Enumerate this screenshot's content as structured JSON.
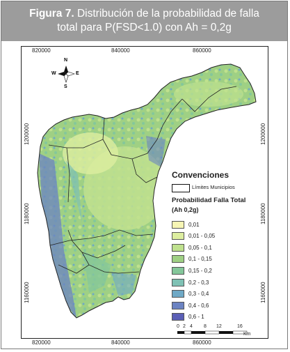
{
  "caption": {
    "bold_label": "Figura 7.",
    "line1_text": " Distribución de la probabilidad de falla",
    "line2": "total para P(FSD<1.0) con Ah = 0,2g"
  },
  "map": {
    "x_ticks": [
      "820000",
      "840000",
      "860000"
    ],
    "y_ticks": [
      "1200000",
      "1180000",
      "1160000"
    ],
    "compass": {
      "n": "N",
      "s": "S",
      "e": "E",
      "w": "W"
    },
    "legend": {
      "title": "Convenciones",
      "municipal_limits_label": "Límites Municipios",
      "prob_title": "Probabilidad Falla Total",
      "prob_subtitle": "(Ah 0,2g)",
      "classes": [
        {
          "label": "0,01",
          "color": "#f6f5b4"
        },
        {
          "label": "0,01 - 0,05",
          "color": "#ddeea0"
        },
        {
          "label": "0,05 - 0,1",
          "color": "#bfe18e"
        },
        {
          "label": "0,1 - 0,15",
          "color": "#9fd084"
        },
        {
          "label": "0,15 - 0,2",
          "color": "#84c79a"
        },
        {
          "label": "0,2 - 0,3",
          "color": "#7fc1b4"
        },
        {
          "label": "0,3 - 0,4",
          "color": "#6fa9c6"
        },
        {
          "label": "0,4 - 0,6",
          "color": "#6b83c2"
        },
        {
          "label": "0,6 - 1",
          "color": "#5b5fb6"
        }
      ]
    },
    "scale": {
      "ticks": [
        "0",
        "2",
        "4",
        "8",
        "12",
        "16"
      ],
      "unit": "Km"
    }
  }
}
